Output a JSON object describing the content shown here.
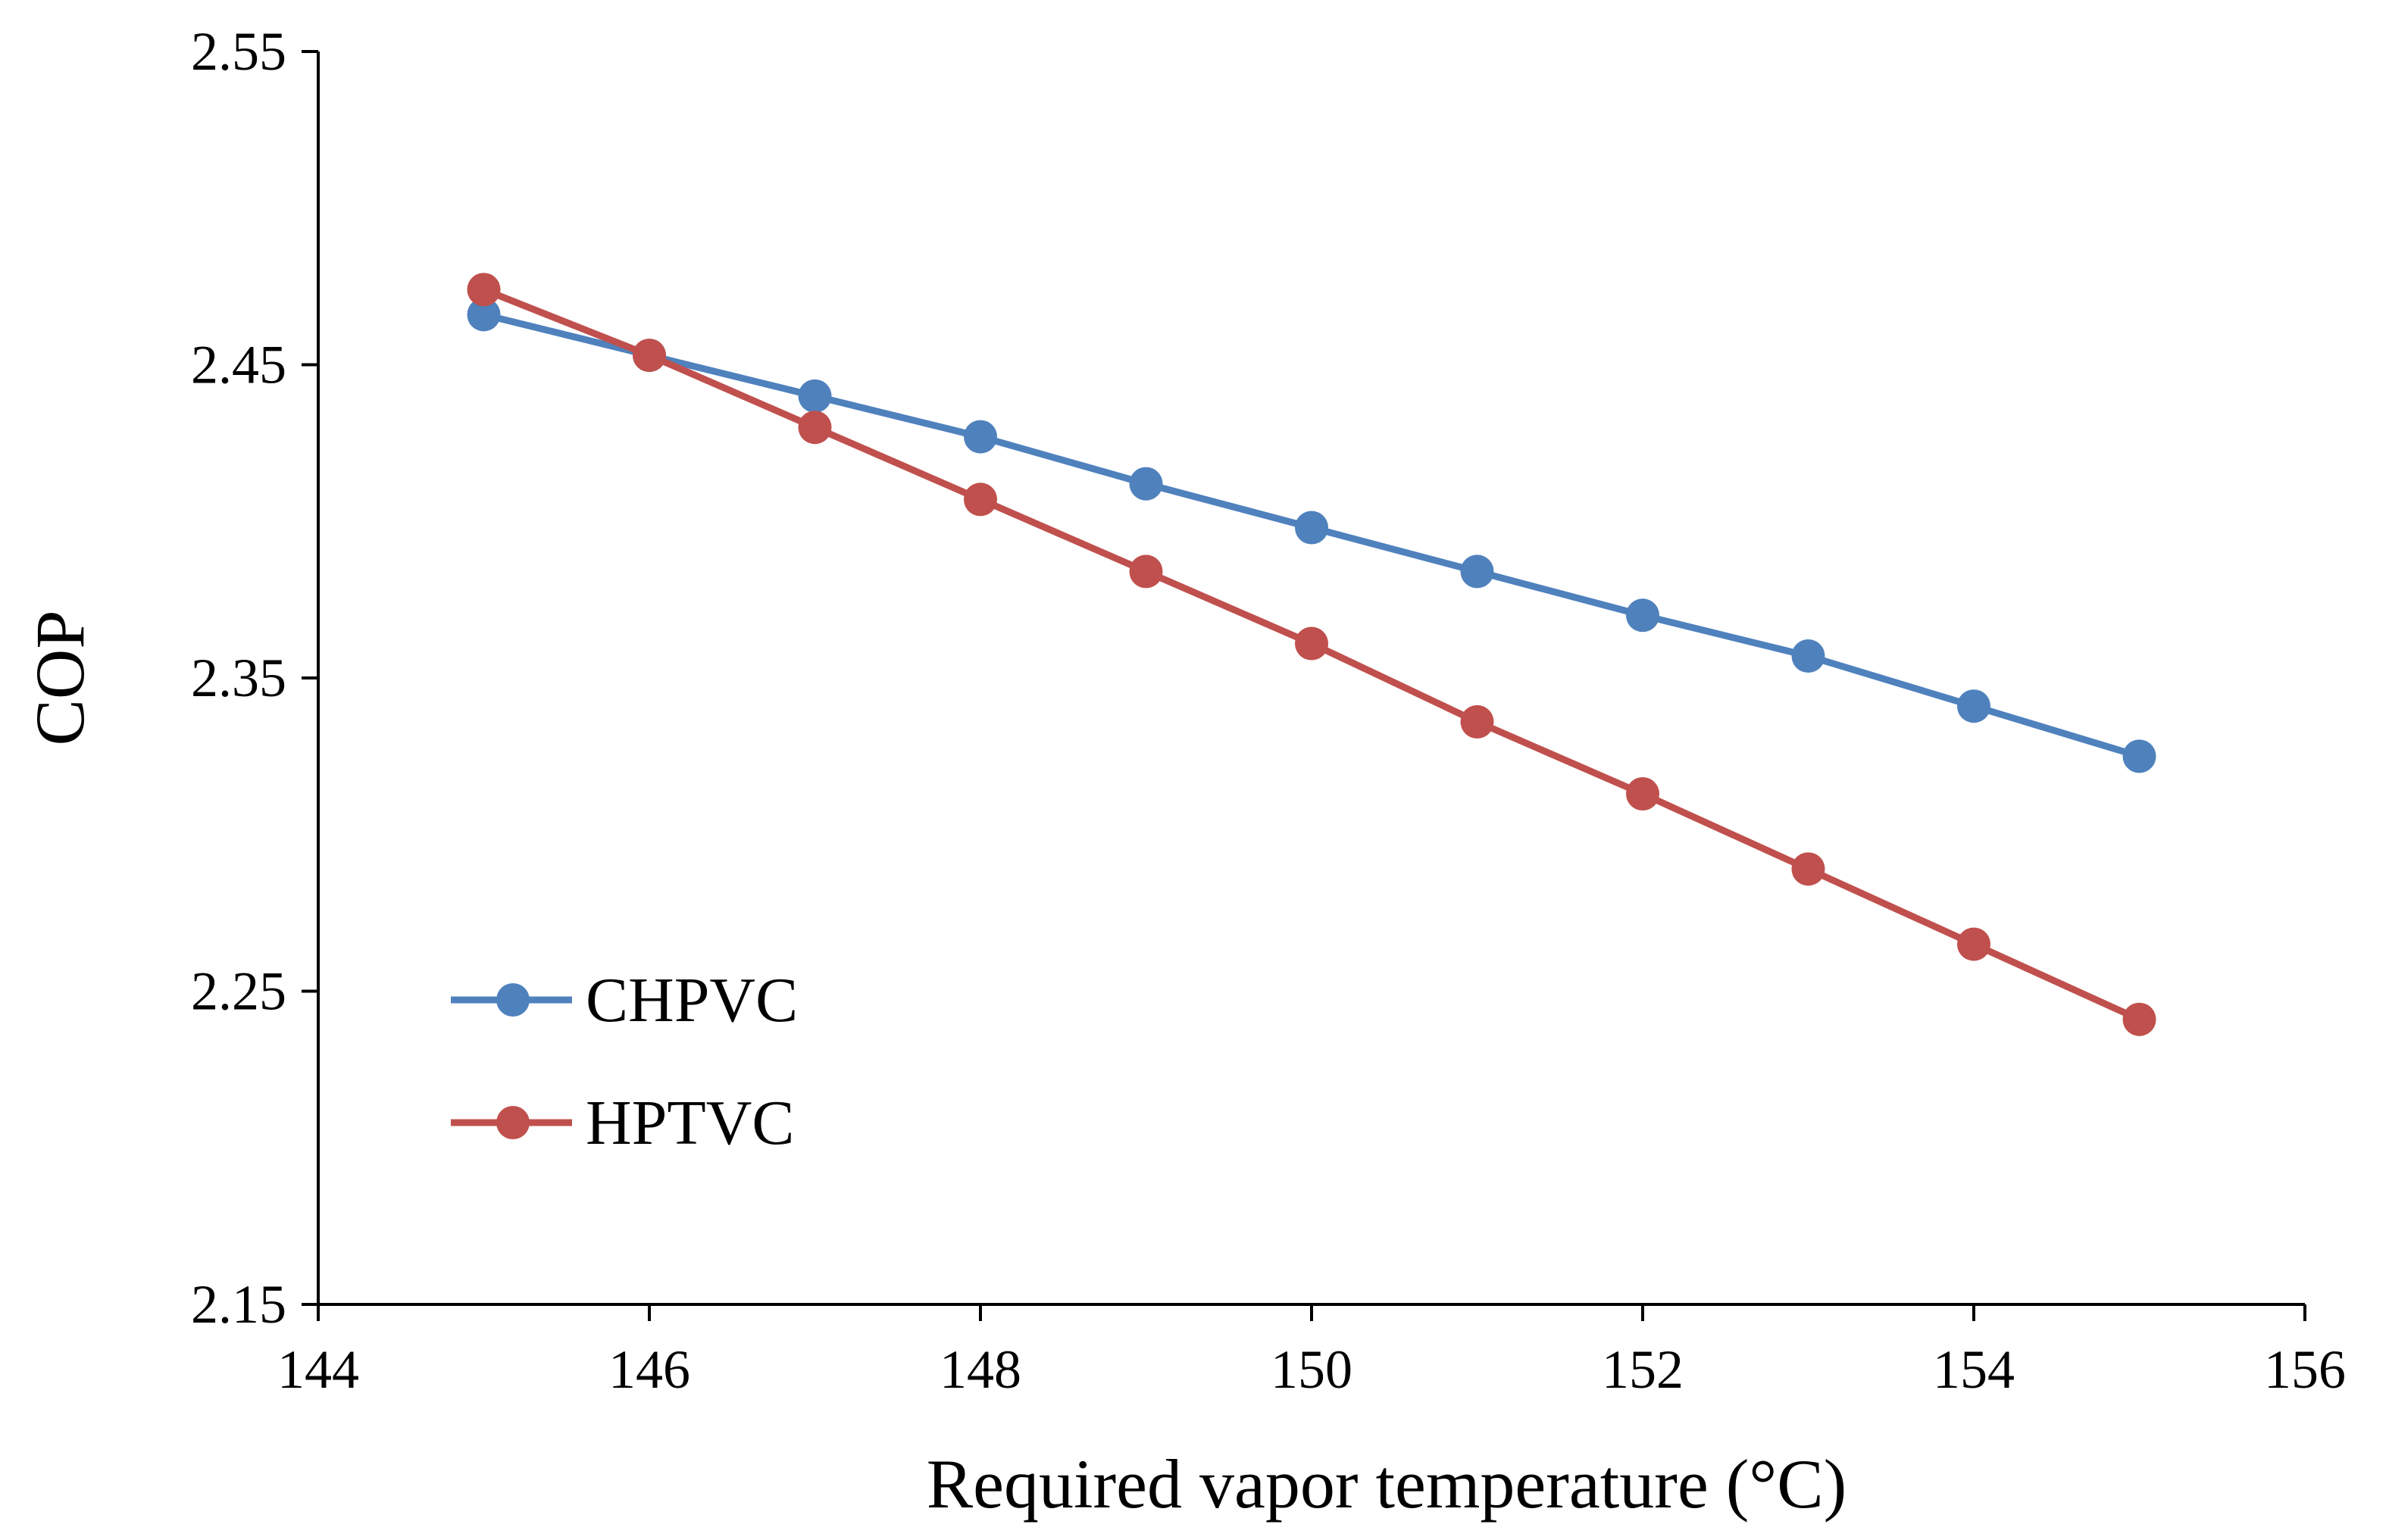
{
  "chart_data": {
    "type": "line",
    "title": "",
    "xlabel": "Required vapor temperature (°C)",
    "ylabel": "COP",
    "xlim": [
      144,
      156
    ],
    "ylim": [
      2.15,
      2.55
    ],
    "xticks": [
      144,
      146,
      148,
      150,
      152,
      154,
      156
    ],
    "yticks": [
      2.15,
      2.25,
      2.35,
      2.45,
      2.55
    ],
    "xtick_labels": [
      "144",
      "146",
      "148",
      "150",
      "152",
      "154",
      "156"
    ],
    "ytick_labels": [
      "2.15",
      "2.25",
      "2.35",
      "2.45",
      "2.55"
    ],
    "grid": false,
    "legend_position": "lower-left",
    "x": [
      145,
      146,
      147,
      148,
      149,
      150,
      151,
      152,
      153,
      154,
      155
    ],
    "series": [
      {
        "name": "CHPVC",
        "color": "#4F81BD",
        "marker": "circle",
        "values": [
          2.466,
          2.453,
          2.44,
          2.427,
          2.412,
          2.398,
          2.384,
          2.37,
          2.357,
          2.341,
          2.325
        ]
      },
      {
        "name": "HPTVC",
        "color": "#C0504D",
        "marker": "circle",
        "values": [
          2.474,
          2.453,
          2.43,
          2.407,
          2.384,
          2.361,
          2.336,
          2.313,
          2.289,
          2.265,
          2.241
        ]
      }
    ]
  }
}
